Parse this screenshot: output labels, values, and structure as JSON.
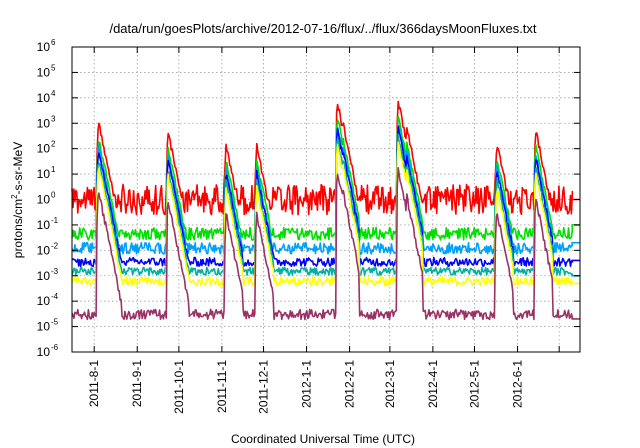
{
  "chart_data": {
    "type": "line",
    "title": "/data/run/goesPlots/archive/2012-07-16/flux/../flux/366daysMoonFluxes.txt",
    "xlabel": "Coordinated Universal Time (UTC)",
    "ylabel": {
      "prefix": "protons/cm",
      "superscript": "2",
      "suffix": "-s-sr-MeV"
    },
    "y_scale": "log",
    "y_ticks": [
      {
        "base": "10",
        "exp": "-6",
        "value": 1e-06
      },
      {
        "base": "10",
        "exp": "-5",
        "value": 1e-05
      },
      {
        "base": "10",
        "exp": "-4",
        "value": 0.0001
      },
      {
        "base": "10",
        "exp": "-3",
        "value": 0.001
      },
      {
        "base": "10",
        "exp": "-2",
        "value": 0.01
      },
      {
        "base": "10",
        "exp": "-1",
        "value": 0.1
      },
      {
        "base": "10",
        "exp": "0",
        "value": 1
      },
      {
        "base": "10",
        "exp": "1",
        "value": 10
      },
      {
        "base": "10",
        "exp": "2",
        "value": 100
      },
      {
        "base": "10",
        "exp": "3",
        "value": 1000
      },
      {
        "base": "10",
        "exp": "4",
        "value": 10000
      },
      {
        "base": "10",
        "exp": "5",
        "value": 100000
      },
      {
        "base": "10",
        "exp": "6",
        "value": 1000000
      }
    ],
    "ylim": [
      1e-06,
      1000000.0
    ],
    "x_tick_labels": [
      "2011-8-1",
      "2011-9-1",
      "2011-10-1",
      "2011-11-1",
      "2011-12-1",
      "2012-1-1",
      "2012-2-1",
      "2012-3-1",
      "2012-4-1",
      "2012-5-1",
      "2012-6-1"
    ],
    "xlim": [
      "2011-07-16",
      "2012-07-16"
    ],
    "grid": true,
    "events": [
      {
        "date": "2011-08-04",
        "peak": 1200,
        "base": 3
      },
      {
        "date": "2011-08-09",
        "peak": 60,
        "base": 3
      },
      {
        "date": "2011-09-23",
        "peak": 500,
        "base": 3
      },
      {
        "date": "2011-09-26",
        "peak": 80,
        "base": 3
      },
      {
        "date": "2011-11-04",
        "peak": 150,
        "base": 2
      },
      {
        "date": "2011-11-26",
        "peak": 150,
        "base": 2
      },
      {
        "date": "2012-01-23",
        "peak": 8000,
        "base": 3
      },
      {
        "date": "2012-01-27",
        "peak": 1200,
        "base": 3
      },
      {
        "date": "2012-03-07",
        "peak": 8000,
        "base": 3
      },
      {
        "date": "2012-03-13",
        "peak": 800,
        "base": 3
      },
      {
        "date": "2012-05-17",
        "peak": 200,
        "base": 2
      },
      {
        "date": "2012-06-14",
        "peak": 600,
        "base": 2
      },
      {
        "date": "2012-07-12",
        "peak": 40,
        "base": 2
      }
    ],
    "series": [
      {
        "color": "#ff0000",
        "base": 1.0,
        "noise": 1.2,
        "event_scale": 1.0,
        "end_level": 1.0
      },
      {
        "color": "#00e000",
        "base": 0.045,
        "noise": 0.5,
        "event_scale": 0.25,
        "end_level": 0.1
      },
      {
        "color": "#00a0ff",
        "base": 0.012,
        "noise": 0.45,
        "event_scale": 0.12,
        "end_level": 0.02
      },
      {
        "color": "#0000ff",
        "base": 0.0035,
        "noise": 0.35,
        "event_scale": 0.08,
        "end_level": 0.004
      },
      {
        "color": "#00b0a0",
        "base": 0.0015,
        "noise": 0.3,
        "event_scale": 0.04,
        "end_level": 0.001
      },
      {
        "color": "#ffff00",
        "base": 0.0006,
        "noise": 0.35,
        "event_scale": 0.02,
        "end_level": 0.0005
      },
      {
        "color": "#993366",
        "base": 3e-05,
        "noise": 0.4,
        "event_scale": 0.002,
        "end_level": 2e-05
      }
    ]
  }
}
